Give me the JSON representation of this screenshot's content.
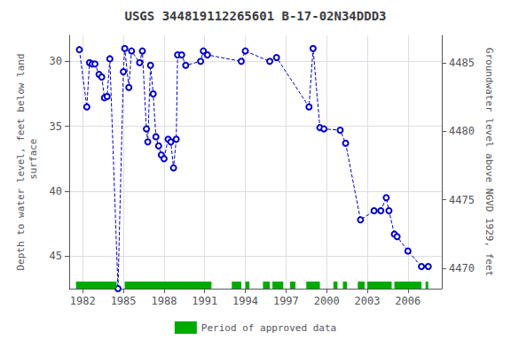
{
  "chart_data": {
    "type": "line",
    "title": "USGS 344819112265601 B-17-02N34DDD3",
    "ylabel": "Depth to water level, feet below land\n surface",
    "y2label": "Groundwater level above NGVD 1929, feet",
    "xlim": [
      1981.0,
      2008.5
    ],
    "xticks": [
      1982,
      1985,
      1988,
      1991,
      1994,
      1997,
      2000,
      2003,
      2006
    ],
    "ylim": [
      47.5,
      28.0
    ],
    "yticks": [
      30,
      35,
      40,
      45
    ],
    "y2lim": [
      4468.5,
      4487.0
    ],
    "y2ticks": [
      4470,
      4475,
      4480,
      4485
    ],
    "grid": true,
    "legend": "bottom",
    "x": [
      1981.75,
      1982.3,
      1982.5,
      1982.7,
      1982.9,
      1983.2,
      1983.4,
      1983.6,
      1983.8,
      1984.0,
      1984.6,
      1985.0,
      1985.1,
      1985.4,
      1985.6,
      1986.2,
      1986.4,
      1986.7,
      1986.8,
      1987.0,
      1987.2,
      1987.4,
      1987.6,
      1987.8,
      1988.0,
      1988.3,
      1988.5,
      1988.7,
      1988.9,
      1989.0,
      1989.3,
      1989.6,
      1990.7,
      1990.9,
      1991.2,
      1993.7,
      1994.0,
      1995.8,
      1996.3,
      1998.7,
      1999.0,
      1999.5,
      1999.8,
      2001.0,
      2001.4,
      2002.5,
      2003.5,
      2004.0,
      2004.4,
      2004.6,
      2005.0,
      2005.2,
      2006.0,
      2007.0,
      2007.5
    ],
    "series": [
      {
        "color": "#0000CC",
        "line_style": "dashed",
        "marker": "circle",
        "values": [
          29.1,
          33.5,
          30.1,
          30.2,
          30.2,
          31.0,
          31.2,
          32.8,
          32.7,
          29.8,
          47.5,
          30.8,
          29.0,
          32.0,
          29.2,
          30.1,
          29.2,
          35.2,
          36.2,
          30.3,
          32.5,
          35.8,
          36.5,
          37.2,
          37.5,
          36.0,
          36.2,
          38.2,
          36.0,
          29.5,
          29.5,
          30.3,
          30.0,
          29.2,
          29.5,
          30.0,
          29.2,
          30.0,
          29.7,
          33.5,
          29.0,
          35.1,
          35.2,
          35.3,
          36.3,
          42.2,
          41.5,
          41.5,
          40.5,
          41.5,
          43.3,
          43.5,
          44.6,
          45.8,
          45.8
        ]
      }
    ],
    "periods": {
      "name": "Period of approved data",
      "color": "#00aa00",
      "ranges": [
        [
          1981.5,
          1984.5
        ],
        [
          1985.1,
          1991.5
        ],
        [
          1993.0,
          1993.7
        ],
        [
          1994.0,
          1994.3
        ],
        [
          1995.3,
          1995.8
        ],
        [
          1996.0,
          1996.8
        ],
        [
          1997.3,
          1997.7
        ],
        [
          1998.5,
          1999.5
        ],
        [
          2000.5,
          2000.8
        ],
        [
          2001.2,
          2001.5
        ],
        [
          2002.3,
          2002.8
        ],
        [
          2003.0,
          2004.8
        ],
        [
          2005.0,
          2007.0
        ],
        [
          2007.3,
          2007.5
        ]
      ]
    }
  }
}
